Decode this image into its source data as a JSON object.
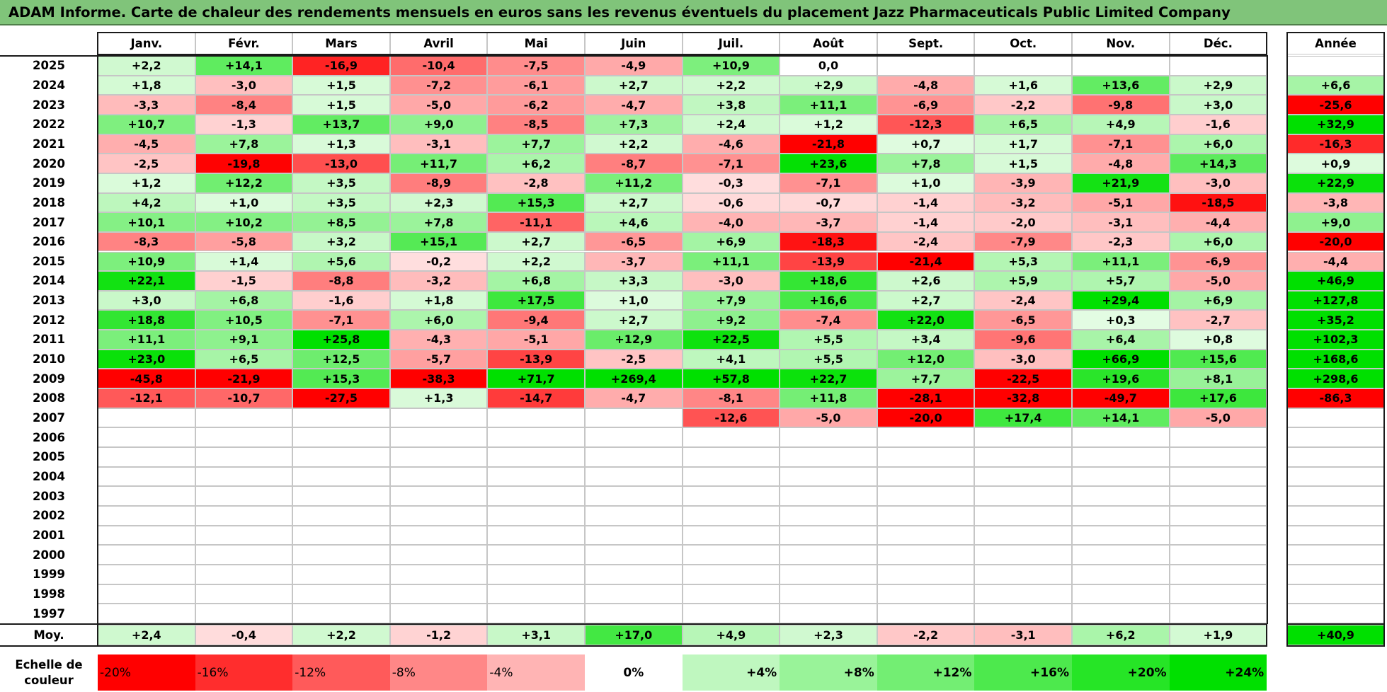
{
  "title": "ADAM Informe. Carte de chaleur des rendements mensuels en euros sans les revenus éventuels du placement Jazz Pharmaceuticals Public Limited Company",
  "chart_data": {
    "type": "heatmap",
    "title": "ADAM Informe. Carte de chaleur des rendements mensuels en euros sans les revenus éventuels du placement Jazz Pharmaceuticals Public Limited Company",
    "months": [
      "Janv.",
      "Févr.",
      "Mars",
      "Avril",
      "Mai",
      "Juin",
      "Juil.",
      "Août",
      "Sept.",
      "Oct.",
      "Nov.",
      "Déc."
    ],
    "year_header": "Année",
    "rows": [
      {
        "year": "2025",
        "values": [
          "+2,2",
          "+14,1",
          "-16,9",
          "-10,4",
          "-7,5",
          "-4,9",
          "+10,9",
          "0,0",
          "",
          "",
          "",
          ""
        ],
        "annual": ""
      },
      {
        "year": "2024",
        "values": [
          "+1,8",
          "-3,0",
          "+1,5",
          "-7,2",
          "-6,1",
          "+2,7",
          "+2,2",
          "+2,9",
          "-4,8",
          "+1,6",
          "+13,6",
          "+2,9"
        ],
        "annual": "+6,6"
      },
      {
        "year": "2023",
        "values": [
          "-3,3",
          "-8,4",
          "+1,5",
          "-5,0",
          "-6,2",
          "-4,7",
          "+3,8",
          "+11,1",
          "-6,9",
          "-2,2",
          "-9,8",
          "+3,0"
        ],
        "annual": "-25,6"
      },
      {
        "year": "2022",
        "values": [
          "+10,7",
          "-1,3",
          "+13,7",
          "+9,0",
          "-8,5",
          "+7,3",
          "+2,4",
          "+1,2",
          "-12,3",
          "+6,5",
          "+4,9",
          "-1,6"
        ],
        "annual": "+32,9"
      },
      {
        "year": "2021",
        "values": [
          "-4,5",
          "+7,8",
          "+1,3",
          "-3,1",
          "+7,7",
          "+2,2",
          "-4,6",
          "-21,8",
          "+0,7",
          "+1,7",
          "-7,1",
          "+6,0"
        ],
        "annual": "-16,3"
      },
      {
        "year": "2020",
        "values": [
          "-2,5",
          "-19,8",
          "-13,0",
          "+11,7",
          "+6,2",
          "-8,7",
          "-7,1",
          "+23,6",
          "+7,8",
          "+1,5",
          "-4,8",
          "+14,3"
        ],
        "annual": "+0,9"
      },
      {
        "year": "2019",
        "values": [
          "+1,2",
          "+12,2",
          "+3,5",
          "-8,9",
          "-2,8",
          "+11,2",
          "-0,3",
          "-7,1",
          "+1,0",
          "-3,9",
          "+21,9",
          "-3,0"
        ],
        "annual": "+22,9"
      },
      {
        "year": "2018",
        "values": [
          "+4,2",
          "+1,0",
          "+3,5",
          "+2,3",
          "+15,3",
          "+2,7",
          "-0,6",
          "-0,7",
          "-1,4",
          "-3,2",
          "-5,1",
          "-18,5"
        ],
        "annual": "-3,8"
      },
      {
        "year": "2017",
        "values": [
          "+10,1",
          "+10,2",
          "+8,5",
          "+7,8",
          "-11,1",
          "+4,6",
          "-4,0",
          "-3,7",
          "-1,4",
          "-2,0",
          "-3,1",
          "-4,4"
        ],
        "annual": "+9,0"
      },
      {
        "year": "2016",
        "values": [
          "-8,3",
          "-5,8",
          "+3,2",
          "+15,1",
          "+2,7",
          "-6,5",
          "+6,9",
          "-18,3",
          "-2,4",
          "-7,9",
          "-2,3",
          "+6,0"
        ],
        "annual": "-20,0"
      },
      {
        "year": "2015",
        "values": [
          "+10,9",
          "+1,4",
          "+5,6",
          "-0,2",
          "+2,2",
          "-3,7",
          "+11,1",
          "-13,9",
          "-21,4",
          "+5,3",
          "+11,1",
          "-6,9"
        ],
        "annual": "-4,4"
      },
      {
        "year": "2014",
        "values": [
          "+22,1",
          "-1,5",
          "-8,8",
          "-3,2",
          "+6,8",
          "+3,3",
          "-3,0",
          "+18,6",
          "+2,6",
          "+5,9",
          "+5,7",
          "-5,0"
        ],
        "annual": "+46,9"
      },
      {
        "year": "2013",
        "values": [
          "+3,0",
          "+6,8",
          "-1,6",
          "+1,8",
          "+17,5",
          "+1,0",
          "+7,9",
          "+16,6",
          "+2,7",
          "-2,4",
          "+29,4",
          "+6,9"
        ],
        "annual": "+127,8"
      },
      {
        "year": "2012",
        "values": [
          "+18,8",
          "+10,5",
          "-7,1",
          "+6,0",
          "-9,4",
          "+2,7",
          "+9,2",
          "-7,4",
          "+22,0",
          "-6,5",
          "+0,3",
          "-2,7"
        ],
        "annual": "+35,2"
      },
      {
        "year": "2011",
        "values": [
          "+11,1",
          "+9,1",
          "+25,8",
          "-4,3",
          "-5,1",
          "+12,9",
          "+22,5",
          "+5,5",
          "+3,4",
          "-9,6",
          "+6,4",
          "+0,8"
        ],
        "annual": "+102,3"
      },
      {
        "year": "2010",
        "values": [
          "+23,0",
          "+6,5",
          "+12,5",
          "-5,7",
          "-13,9",
          "-2,5",
          "+4,1",
          "+5,5",
          "+12,0",
          "-3,0",
          "+66,9",
          "+15,6"
        ],
        "annual": "+168,6"
      },
      {
        "year": "2009",
        "values": [
          "-45,8",
          "-21,9",
          "+15,3",
          "-38,3",
          "+71,7",
          "+269,4",
          "+57,8",
          "+22,7",
          "+7,7",
          "-22,5",
          "+19,6",
          "+8,1"
        ],
        "annual": "+298,6"
      },
      {
        "year": "2008",
        "values": [
          "-12,1",
          "-10,7",
          "-27,5",
          "+1,3",
          "-14,7",
          "-4,7",
          "-8,1",
          "+11,8",
          "-28,1",
          "-32,8",
          "-49,7",
          "+17,6"
        ],
        "annual": "-86,3"
      },
      {
        "year": "2007",
        "values": [
          "",
          "",
          "",
          "",
          "",
          "",
          "-12,6",
          "-5,0",
          "-20,0",
          "+17,4",
          "+14,1",
          "-5,0"
        ],
        "annual": ""
      },
      {
        "year": "2006",
        "values": [
          "",
          "",
          "",
          "",
          "",
          "",
          "",
          "",
          "",
          "",
          "",
          ""
        ],
        "annual": ""
      },
      {
        "year": "2005",
        "values": [
          "",
          "",
          "",
          "",
          "",
          "",
          "",
          "",
          "",
          "",
          "",
          ""
        ],
        "annual": ""
      },
      {
        "year": "2004",
        "values": [
          "",
          "",
          "",
          "",
          "",
          "",
          "",
          "",
          "",
          "",
          "",
          ""
        ],
        "annual": ""
      },
      {
        "year": "2003",
        "values": [
          "",
          "",
          "",
          "",
          "",
          "",
          "",
          "",
          "",
          "",
          "",
          ""
        ],
        "annual": ""
      },
      {
        "year": "2002",
        "values": [
          "",
          "",
          "",
          "",
          "",
          "",
          "",
          "",
          "",
          "",
          "",
          ""
        ],
        "annual": ""
      },
      {
        "year": "2001",
        "values": [
          "",
          "",
          "",
          "",
          "",
          "",
          "",
          "",
          "",
          "",
          "",
          ""
        ],
        "annual": ""
      },
      {
        "year": "2000",
        "values": [
          "",
          "",
          "",
          "",
          "",
          "",
          "",
          "",
          "",
          "",
          "",
          ""
        ],
        "annual": ""
      },
      {
        "year": "1999",
        "values": [
          "",
          "",
          "",
          "",
          "",
          "",
          "",
          "",
          "",
          "",
          "",
          ""
        ],
        "annual": ""
      },
      {
        "year": "1998",
        "values": [
          "",
          "",
          "",
          "",
          "",
          "",
          "",
          "",
          "",
          "",
          "",
          ""
        ],
        "annual": ""
      },
      {
        "year": "1997",
        "values": [
          "",
          "",
          "",
          "",
          "",
          "",
          "",
          "",
          "",
          "",
          "",
          ""
        ],
        "annual": ""
      }
    ],
    "average": {
      "label": "Moy.",
      "values": [
        "+2,4",
        "-0,4",
        "+2,2",
        "-1,2",
        "+3,1",
        "+17,0",
        "+4,9",
        "+2,3",
        "-2,2",
        "-3,1",
        "+6,2",
        "+1,9"
      ],
      "annual": "+40,9"
    },
    "scale": {
      "label": "Echelle de couleur",
      "entries": [
        {
          "text": "-20%",
          "value": -20
        },
        {
          "text": "-16%",
          "value": -16
        },
        {
          "text": "-12%",
          "value": -12
        },
        {
          "text": "-8%",
          "value": -8
        },
        {
          "text": "-4%",
          "value": -4
        },
        {
          "text": "0%",
          "value": 0
        },
        {
          "text": "+4%",
          "value": 4
        },
        {
          "text": "+8%",
          "value": 8
        },
        {
          "text": "+12%",
          "value": 12
        },
        {
          "text": "+16%",
          "value": 16
        },
        {
          "text": "+20%",
          "value": 20
        },
        {
          "text": "+24%",
          "value": 24
        }
      ]
    },
    "colors": {
      "negative_max": "#ff0000",
      "neutral": "#ffffff",
      "positive_max": "#00e000",
      "title_bar": "#80c47a"
    }
  }
}
